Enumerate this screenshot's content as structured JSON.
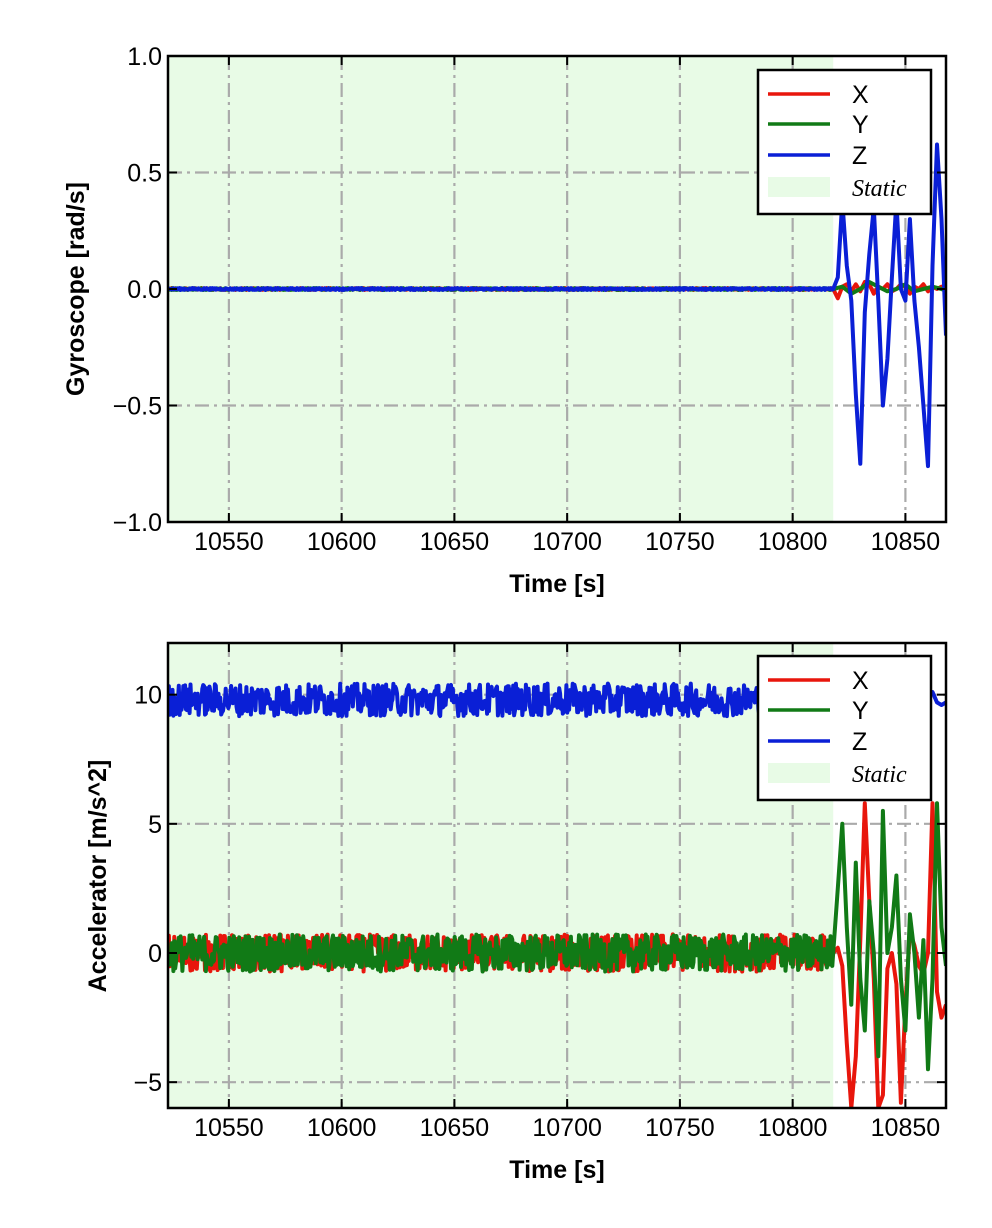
{
  "colors": {
    "X": "#e8160c",
    "Y": "#117a16",
    "Z": "#0a1fd6",
    "static_fill": "#e8fbe6",
    "grid": "#aaaaaa"
  },
  "chart_data": [
    {
      "type": "line",
      "xlabel": "Time [s]",
      "ylabel": "Gyroscope [rad/s]",
      "xlim": [
        10523,
        10868
      ],
      "ylim": [
        -1.0,
        1.0
      ],
      "xticks": [
        10550,
        10600,
        10650,
        10700,
        10750,
        10800,
        10850
      ],
      "xtick_labels": [
        "10550",
        "10600",
        "10650",
        "10700",
        "10750",
        "10800",
        "10850"
      ],
      "yticks": [
        -1.0,
        -0.5,
        0.0,
        0.5,
        1.0
      ],
      "ytick_labels": [
        "−1.0",
        "−0.5",
        "0.0",
        "0.5",
        "1.0"
      ],
      "grid": true,
      "legend": "top-right",
      "static_region": {
        "label": "Static",
        "x": [
          10523,
          10818
        ]
      },
      "series": [
        {
          "name": "X",
          "color_key": "X",
          "noise": 0.004,
          "x": [
            10523,
            10818,
            10820,
            10822,
            10824,
            10826,
            10828,
            10830,
            10832,
            10834,
            10836,
            10838,
            10840,
            10842,
            10844,
            10846,
            10848,
            10850,
            10852,
            10854,
            10856,
            10858,
            10860,
            10862,
            10864,
            10866,
            10868
          ],
          "y": [
            0.0,
            0.0,
            -0.04,
            0.01,
            0.02,
            -0.01,
            0.02,
            -0.01,
            0.03,
            0.02,
            -0.02,
            0.01,
            0.0,
            0.02,
            -0.01,
            0.0,
            0.02,
            0.01,
            -0.02,
            0.01,
            0.0,
            0.02,
            -0.01,
            0.01,
            0.0,
            0.01,
            0.0
          ]
        },
        {
          "name": "Y",
          "color_key": "Y",
          "noise": 0.004,
          "x": [
            10523,
            10818,
            10822,
            10826,
            10830,
            10834,
            10838,
            10842,
            10846,
            10850,
            10854,
            10858,
            10862,
            10866,
            10868
          ],
          "y": [
            0.0,
            0.0,
            0.01,
            -0.02,
            0.0,
            0.03,
            0.01,
            -0.01,
            0.0,
            0.02,
            -0.01,
            0.0,
            0.01,
            0.0,
            0.0
          ]
        },
        {
          "name": "Z",
          "color_key": "Z",
          "noise": 0.004,
          "x": [
            10523,
            10818,
            10820,
            10822,
            10824,
            10826,
            10828,
            10830,
            10832,
            10834,
            10836,
            10838,
            10840,
            10842,
            10844,
            10846,
            10848,
            10850,
            10852,
            10854,
            10856,
            10858,
            10860,
            10862,
            10864,
            10866,
            10868
          ],
          "y": [
            0.0,
            0.0,
            0.05,
            0.38,
            0.1,
            -0.05,
            -0.45,
            -0.75,
            -0.1,
            0.15,
            0.35,
            -0.05,
            -0.5,
            -0.3,
            0.05,
            0.38,
            0.0,
            -0.05,
            0.3,
            -0.05,
            -0.25,
            -0.5,
            -0.76,
            0.1,
            0.62,
            0.3,
            -0.2
          ]
        }
      ]
    },
    {
      "type": "line",
      "xlabel": "Time [s]",
      "ylabel": "Accelerator [m/s^2]",
      "xlim": [
        10523,
        10868
      ],
      "ylim": [
        -6,
        12
      ],
      "xticks": [
        10550,
        10600,
        10650,
        10700,
        10750,
        10800,
        10850
      ],
      "xtick_labels": [
        "10550",
        "10600",
        "10650",
        "10700",
        "10750",
        "10800",
        "10850"
      ],
      "yticks": [
        -5,
        0,
        5,
        10
      ],
      "ytick_labels": [
        "−5",
        "0",
        "5",
        "10"
      ],
      "grid": true,
      "legend": "top-right",
      "static_region": {
        "label": "Static",
        "x": [
          10523,
          10818
        ]
      },
      "series": [
        {
          "name": "X",
          "color_key": "X",
          "noise": 0.08,
          "x": [
            10523,
            10818,
            10820,
            10822,
            10824,
            10826,
            10828,
            10830,
            10832,
            10834,
            10836,
            10838,
            10840,
            10842,
            10844,
            10846,
            10848,
            10850,
            10852,
            10854,
            10856,
            10858,
            10860,
            10862,
            10864,
            10866,
            10868
          ],
          "y": [
            0.0,
            0.0,
            0.2,
            -0.5,
            -3.5,
            -6.0,
            -4.0,
            0.5,
            5.8,
            2.0,
            -1.0,
            -6.0,
            -5.5,
            -0.6,
            0.0,
            -1.2,
            -5.8,
            -2.0,
            0.8,
            0.3,
            -0.5,
            -0.8,
            0.0,
            5.8,
            -1.5,
            -2.5,
            -2.0
          ]
        },
        {
          "name": "Y",
          "color_key": "Y",
          "noise": 0.08,
          "x": [
            10523,
            10818,
            10820,
            10822,
            10824,
            10826,
            10828,
            10830,
            10832,
            10834,
            10836,
            10838,
            10840,
            10842,
            10844,
            10846,
            10848,
            10850,
            10852,
            10854,
            10856,
            10858,
            10860,
            10862,
            10864,
            10866,
            10868
          ],
          "y": [
            0.0,
            0.0,
            2.5,
            5.0,
            1.0,
            -2.0,
            3.5,
            -1.0,
            -3.0,
            2.0,
            0.0,
            -4.0,
            5.5,
            0.0,
            1.0,
            3.0,
            -1.0,
            -3.0,
            1.5,
            0.0,
            -2.5,
            0.5,
            -4.5,
            -1.0,
            5.8,
            1.0,
            -0.5
          ]
        },
        {
          "name": "Z",
          "color_key": "Z",
          "noise": 0.07,
          "x": [
            10523,
            10818,
            10850,
            10858,
            10862,
            10864,
            10866,
            10868
          ],
          "y": [
            9.8,
            9.8,
            9.85,
            9.9,
            10.1,
            9.7,
            9.6,
            9.7
          ]
        }
      ]
    }
  ]
}
